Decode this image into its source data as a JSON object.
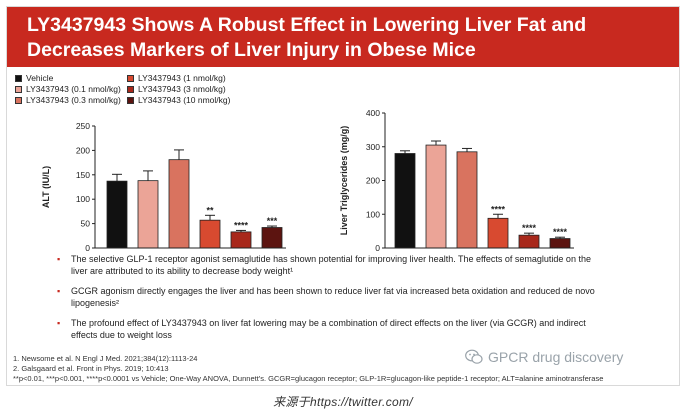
{
  "slide": {
    "title_line1": "LY3437943 Shows A Robust Effect in Lowering Liver Fat and",
    "title_line2": "Decreases Markers of Liver Injury in Obese Mice",
    "title_bg": "#c8291f"
  },
  "legend": [
    {
      "label": "Vehicle",
      "color": "#111111"
    },
    {
      "label": "LY3437943 (0.1 nmol/kg)",
      "color": "#eba497"
    },
    {
      "label": "LY3437943 (0.3 nmol/kg)",
      "color": "#d9735f"
    },
    {
      "label": "LY3437943 (1 nmol/kg)",
      "color": "#d84a30"
    },
    {
      "label": "LY3437943 (3 nmol/kg)",
      "color": "#a8281b"
    },
    {
      "label": "LY3437943 (10 nmol/kg)",
      "color": "#5c1410"
    }
  ],
  "chart_data": [
    {
      "type": "bar",
      "ylabel": "ALT (IU/L)",
      "ylim": [
        0,
        250
      ],
      "yticks": [
        "0",
        "50",
        "100",
        "150",
        "200",
        "250"
      ],
      "categories": [
        "Vehicle",
        "LY3437943 (0.1 nmol/kg)",
        "LY3437943 (0.3 nmol/kg)",
        "LY3437943 (1 nmol/kg)",
        "LY3437943 (3 nmol/kg)",
        "LY3437943 (10 nmol/kg)"
      ],
      "values": [
        137,
        138,
        181,
        57,
        33,
        42
      ],
      "errors": [
        14,
        20,
        20,
        10,
        3,
        3
      ],
      "significance": [
        "",
        "",
        "",
        "**",
        "****",
        "***"
      ]
    },
    {
      "type": "bar",
      "ylabel": "Liver Triglycerides (mg/g)",
      "ylim": [
        0,
        400
      ],
      "yticks": [
        "0",
        "100",
        "200",
        "300",
        "400"
      ],
      "categories": [
        "Vehicle",
        "LY3437943 (0.1 nmol/kg)",
        "LY3437943 (0.3 nmol/kg)",
        "LY3437943 (1 nmol/kg)",
        "LY3437943 (3 nmol/kg)",
        "LY3437943 (10 nmol/kg)"
      ],
      "values": [
        280,
        305,
        285,
        88,
        38,
        28
      ],
      "errors": [
        8,
        12,
        10,
        12,
        6,
        4
      ],
      "significance": [
        "",
        "",
        "",
        "****",
        "****",
        "****"
      ]
    }
  ],
  "bullets": [
    {
      "lines": [
        "The selective GLP-1 receptor agonist semaglutide has shown potential for improving liver health. The effects of semaglutide on the",
        "liver are attributed to its ability to decrease body weight¹"
      ]
    },
    {
      "lines": [
        "GCGR agonism directly engages the liver and has been shown to reduce liver fat via increased beta oxidation and reduced de novo",
        "lipogenesis²"
      ]
    },
    {
      "lines": [
        "The profound effect of LY3437943 on liver fat lowering may be a combination of direct effects on the liver (via GCGR) and indirect",
        "effects due to weight loss"
      ]
    }
  ],
  "references": [
    "1.  Newsome et al. N Engl J Med. 2021;384(12):1113-24",
    "2.  Galsgaard et al. Front in Phys. 2019; 10:413",
    "**p<0.01, ***p<0.001, ****p<0.0001 vs Vehicle; One-Way ANOVA, Dunnett's. GCGR=glucagon receptor; GLP-1R=glucagon-like peptide-1 receptor; ALT=alanine aminotransferase"
  ],
  "watermark": "GPCR drug discovery",
  "caption": "来源于https://twitter.com/"
}
